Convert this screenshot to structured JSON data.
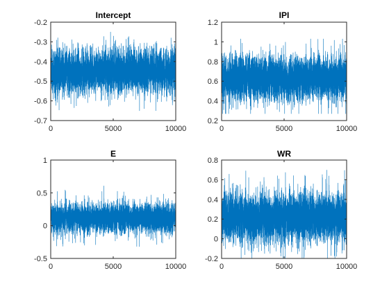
{
  "figure": {
    "background": "#ffffff",
    "series_color": "#0072bd",
    "axis_color": "#262626"
  },
  "chart_data": [
    {
      "type": "line",
      "title": "Intercept",
      "xlim": [
        0,
        10000
      ],
      "ylim": [
        -0.7,
        -0.2
      ],
      "xticks": [
        0,
        5000,
        10000
      ],
      "xtick_labels": [
        "0",
        "5000",
        "10000"
      ],
      "yticks": [
        -0.7,
        -0.6,
        -0.5,
        -0.4,
        -0.3,
        -0.2
      ],
      "ytick_labels": [
        "-0.7",
        "-0.6",
        "-0.5",
        "-0.4",
        "-0.3",
        "-0.2"
      ],
      "n_samples": 10000,
      "trace_center": -0.45,
      "trace_spread": 0.055,
      "trace_min": -0.65,
      "trace_max": -0.25,
      "grid": false,
      "legend": "none"
    },
    {
      "type": "line",
      "title": "IPI",
      "xlim": [
        0,
        10000
      ],
      "ylim": [
        0.2,
        1.2
      ],
      "xticks": [
        0,
        5000,
        10000
      ],
      "xtick_labels": [
        "0",
        "5000",
        "10000"
      ],
      "yticks": [
        0.2,
        0.4,
        0.6,
        0.8,
        1.0,
        1.2
      ],
      "ytick_labels": [
        "0.2",
        "0.4",
        "0.6",
        "0.8",
        "1",
        "1.2"
      ],
      "n_samples": 10000,
      "trace_center": 0.63,
      "trace_spread": 0.11,
      "trace_min": 0.27,
      "trace_max": 1.03,
      "grid": false,
      "legend": "none"
    },
    {
      "type": "line",
      "title": "E",
      "xlim": [
        0,
        10000
      ],
      "ylim": [
        -0.5,
        1.0
      ],
      "xticks": [
        0,
        5000,
        10000
      ],
      "xtick_labels": [
        "0",
        "5000",
        "10000"
      ],
      "yticks": [
        -0.5,
        0.0,
        0.5,
        1.0
      ],
      "ytick_labels": [
        "-0.5",
        "0",
        "0.5",
        "1"
      ],
      "n_samples": 10000,
      "trace_center": 0.12,
      "trace_spread": 0.11,
      "trace_min": -0.35,
      "trace_max": 0.72,
      "grid": false,
      "legend": "none"
    },
    {
      "type": "line",
      "title": "WR",
      "xlim": [
        0,
        10000
      ],
      "ylim": [
        -0.2,
        0.8
      ],
      "xticks": [
        0,
        5000,
        10000
      ],
      "xtick_labels": [
        "0",
        "5000",
        "10000"
      ],
      "yticks": [
        -0.2,
        0.0,
        0.2,
        0.4,
        0.6,
        0.8
      ],
      "ytick_labels": [
        "-0.2",
        "0",
        "0.2",
        "0.4",
        "0.6",
        "0.8"
      ],
      "n_samples": 10000,
      "trace_center": 0.22,
      "trace_spread": 0.12,
      "trace_min": -0.2,
      "trace_max": 0.8,
      "grid": false,
      "legend": "none"
    }
  ]
}
